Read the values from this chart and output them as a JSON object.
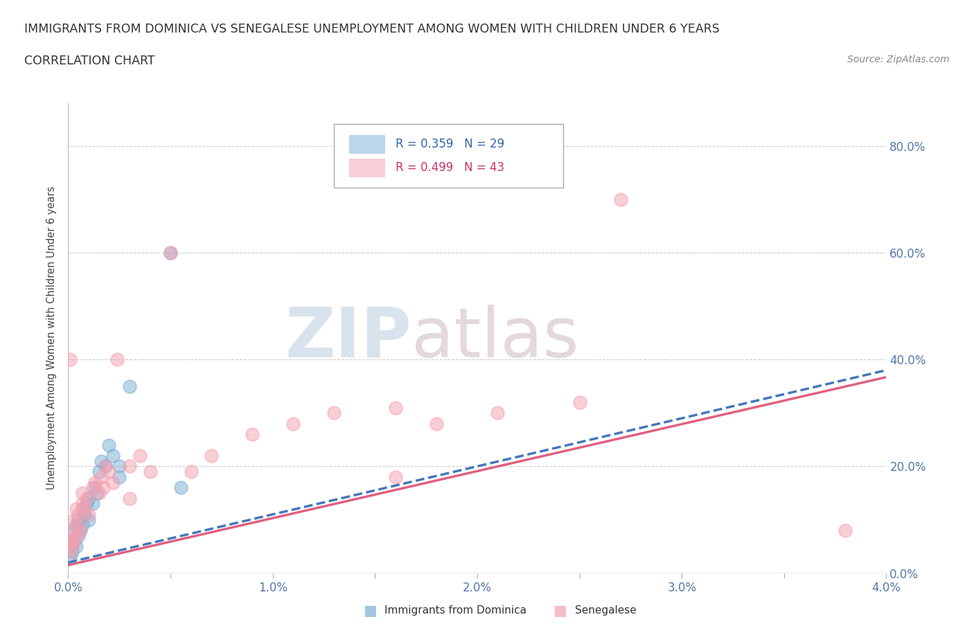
{
  "title_line1": "IMMIGRANTS FROM DOMINICA VS SENEGALESE UNEMPLOYMENT AMONG WOMEN WITH CHILDREN UNDER 6 YEARS",
  "title_line2": "CORRELATION CHART",
  "source": "Source: ZipAtlas.com",
  "ylabel": "Unemployment Among Women with Children Under 6 years",
  "xlim": [
    0.0,
    0.04
  ],
  "ylim": [
    0.0,
    0.88
  ],
  "xticks": [
    0.0,
    0.005,
    0.01,
    0.015,
    0.02,
    0.025,
    0.03,
    0.035,
    0.04
  ],
  "xtick_labels": [
    "0.0%",
    "",
    "1.0%",
    "",
    "2.0%",
    "",
    "3.0%",
    "",
    "4.0%"
  ],
  "yticks": [
    0.0,
    0.2,
    0.4,
    0.6,
    0.8
  ],
  "ytick_labels_right": [
    "0.0%",
    "20.0%",
    "40.0%",
    "60.0%",
    "80.0%"
  ],
  "grid_color": "#cccccc",
  "background_color": "#ffffff",
  "blue_color": "#7bafd4",
  "pink_color": "#f4a0b0",
  "trend_blue_color": "#4477bb",
  "trend_pink_color": "#e06080",
  "blue_label": "Immigrants from Dominica",
  "pink_label": "Senegalese",
  "R_blue": 0.359,
  "N_blue": 29,
  "R_pink": 0.499,
  "N_pink": 43,
  "watermark_zip": "ZIP",
  "watermark_atlas": "atlas",
  "blue_x": [
    0.0001,
    0.0002,
    0.0002,
    0.0003,
    0.0003,
    0.0004,
    0.0004,
    0.0005,
    0.0005,
    0.0006,
    0.0007,
    0.0007,
    0.0008,
    0.0009,
    0.001,
    0.001,
    0.0012,
    0.0013,
    0.0014,
    0.0015,
    0.0016,
    0.0018,
    0.002,
    0.0022,
    0.0025,
    0.003,
    0.005,
    0.0055,
    0.0025
  ],
  "blue_y": [
    0.03,
    0.05,
    0.04,
    0.06,
    0.08,
    0.05,
    0.09,
    0.07,
    0.1,
    0.08,
    0.09,
    0.12,
    0.11,
    0.13,
    0.1,
    0.14,
    0.13,
    0.16,
    0.15,
    0.19,
    0.21,
    0.2,
    0.24,
    0.22,
    0.2,
    0.35,
    0.6,
    0.16,
    0.18
  ],
  "pink_x": [
    0.0001,
    0.0001,
    0.0002,
    0.0002,
    0.0003,
    0.0003,
    0.0004,
    0.0004,
    0.0005,
    0.0005,
    0.0006,
    0.0007,
    0.0007,
    0.0008,
    0.0009,
    0.001,
    0.0012,
    0.0013,
    0.0015,
    0.0016,
    0.0017,
    0.0018,
    0.002,
    0.0022,
    0.0024,
    0.003,
    0.003,
    0.0035,
    0.004,
    0.005,
    0.006,
    0.007,
    0.009,
    0.011,
    0.013,
    0.016,
    0.018,
    0.021,
    0.025,
    0.027,
    0.038,
    0.0001,
    0.016
  ],
  "pink_y": [
    0.04,
    0.06,
    0.05,
    0.08,
    0.06,
    0.1,
    0.07,
    0.12,
    0.09,
    0.11,
    0.08,
    0.13,
    0.15,
    0.12,
    0.14,
    0.11,
    0.16,
    0.17,
    0.15,
    0.18,
    0.16,
    0.2,
    0.19,
    0.17,
    0.4,
    0.14,
    0.2,
    0.22,
    0.19,
    0.6,
    0.19,
    0.22,
    0.26,
    0.28,
    0.3,
    0.31,
    0.28,
    0.3,
    0.32,
    0.7,
    0.08,
    0.4,
    0.18
  ]
}
